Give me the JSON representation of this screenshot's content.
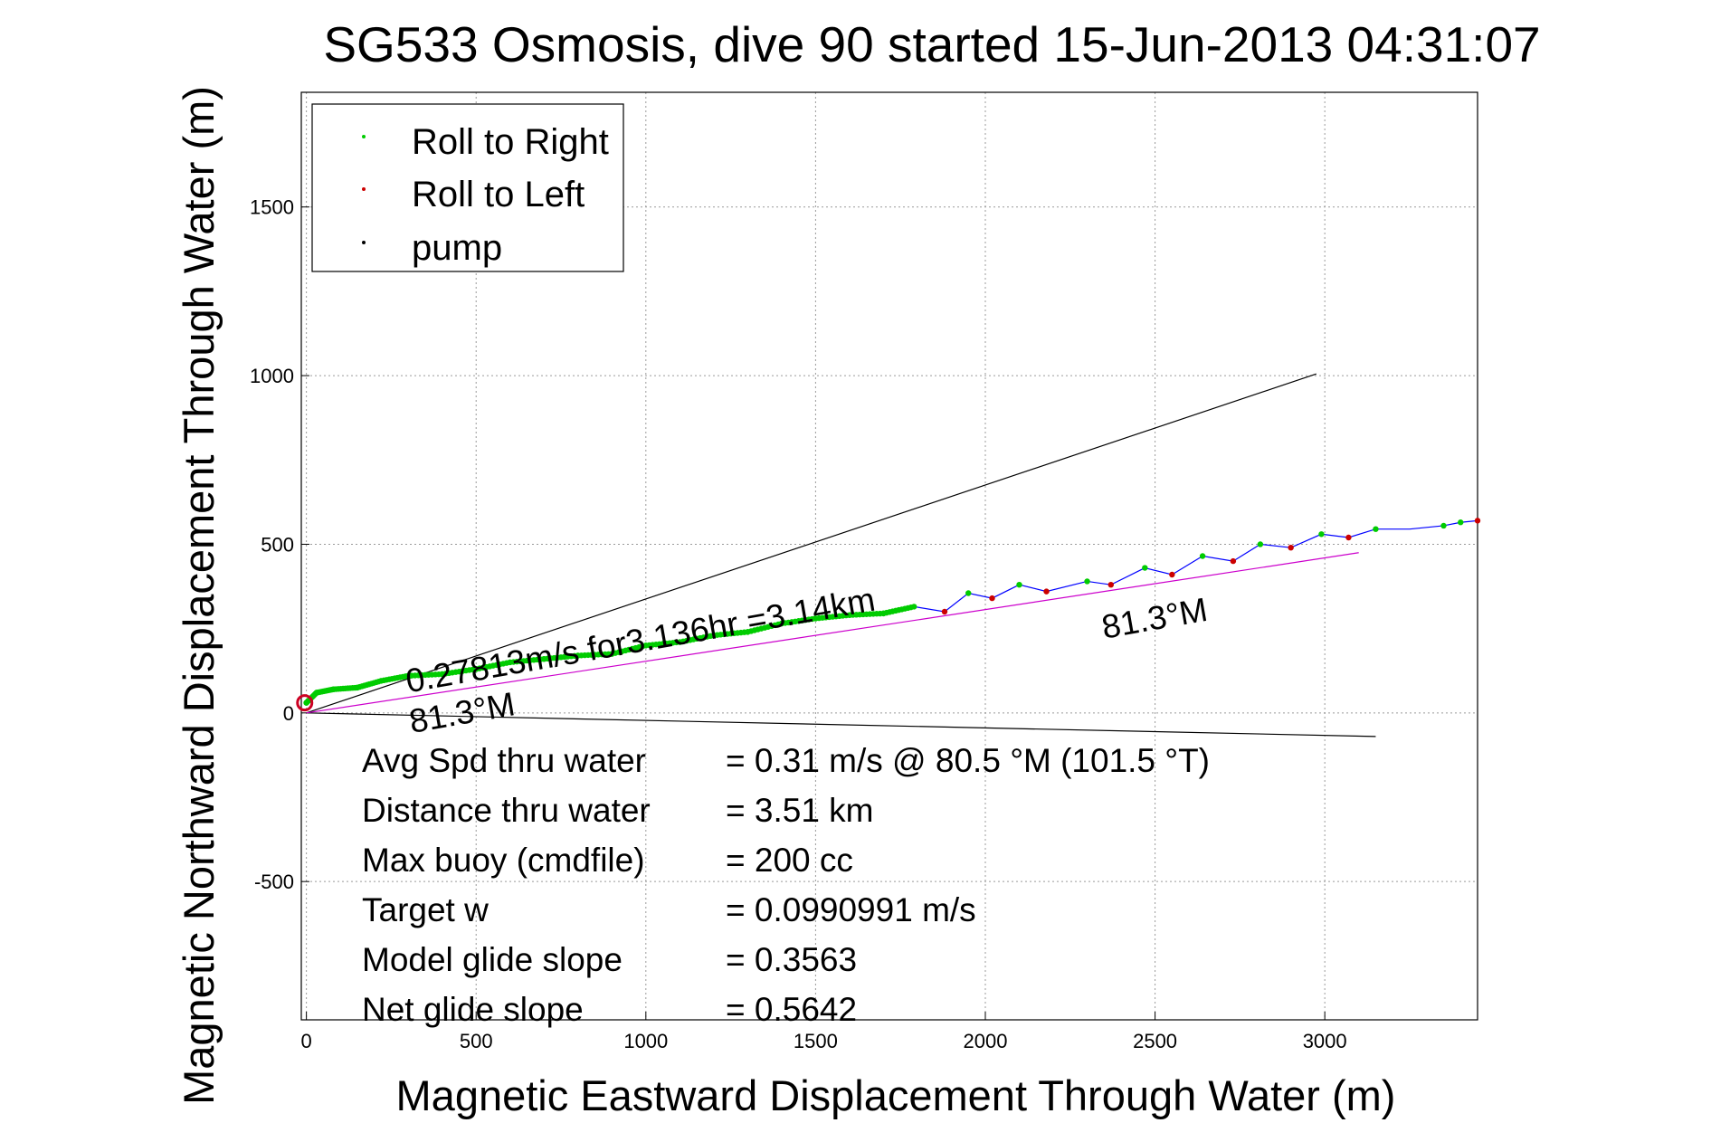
{
  "chart_data": {
    "type": "line",
    "title": "SG533 Osmosis, dive 90 started 15-Jun-2013 04:31:07",
    "xlabel": "Magnetic Eastward Displacement Through Water (m)",
    "ylabel": "Magnetic Northward Displacement Through Water (m)",
    "xlim": [
      -15,
      3450
    ],
    "ylim": [
      -910,
      1840
    ],
    "x_ticks": [
      0,
      500,
      1000,
      1500,
      2000,
      2500,
      3000
    ],
    "y_ticks": [
      -500,
      0,
      500,
      1000,
      1500
    ],
    "grid": true,
    "legend_position": "top-left",
    "legend": [
      {
        "label": "Roll to Right",
        "color": "#00cc00"
      },
      {
        "label": "Roll to Left",
        "color": "#cc0000"
      },
      {
        "label": "pump",
        "color": "#000000"
      }
    ],
    "track": {
      "color": "#0000ff",
      "x": [
        0,
        30,
        80,
        150,
        220,
        300,
        400,
        500,
        600,
        700,
        800,
        900,
        1000,
        1100,
        1200,
        1300,
        1400,
        1500,
        1600,
        1700,
        1790,
        1880,
        1950,
        2020,
        2100,
        2180,
        2300,
        2370,
        2470,
        2550,
        2640,
        2730,
        2810,
        2900,
        2990,
        3070,
        3150,
        3250,
        3350,
        3400,
        3450
      ],
      "y": [
        30,
        60,
        70,
        75,
        95,
        110,
        115,
        130,
        150,
        160,
        170,
        175,
        200,
        210,
        230,
        240,
        265,
        280,
        290,
        295,
        315,
        300,
        355,
        340,
        380,
        360,
        390,
        380,
        430,
        410,
        465,
        450,
        500,
        490,
        530,
        520,
        545,
        545,
        555,
        565,
        570
      ]
    },
    "roll_right_points": {
      "x": [
        0,
        30,
        80,
        150,
        220,
        300,
        400,
        500,
        600,
        700,
        800,
        900,
        1000,
        1100,
        1200,
        1300,
        1400,
        1500,
        1600,
        1700,
        1790,
        1950,
        2100,
        2300,
        2470,
        2640,
        2810,
        2990,
        3150,
        3350,
        3400
      ],
      "y": [
        30,
        60,
        70,
        75,
        95,
        110,
        115,
        130,
        150,
        160,
        170,
        175,
        200,
        210,
        230,
        240,
        265,
        280,
        290,
        295,
        315,
        355,
        380,
        390,
        430,
        465,
        500,
        530,
        545,
        555,
        565
      ]
    },
    "roll_left_points": {
      "x": [
        1880,
        2020,
        2180,
        2370,
        2550,
        2730,
        2900,
        3070,
        3450
      ],
      "y": [
        300,
        340,
        360,
        380,
        410,
        450,
        490,
        520,
        570
      ]
    },
    "start_circle": {
      "x": -5,
      "y": 30
    },
    "reference_lines": [
      {
        "name": "upper-bound",
        "color": "#000000",
        "x": [
          0,
          2975
        ],
        "y": [
          0,
          1005
        ]
      },
      {
        "name": "lower-bound",
        "color": "#000000",
        "x": [
          0,
          3150
        ],
        "y": [
          0,
          -70
        ]
      },
      {
        "name": "heading-line",
        "color": "#cc00cc",
        "x": [
          0,
          3100
        ],
        "y": [
          0,
          475
        ]
      }
    ],
    "annotations": [
      {
        "text": "0.27813m/s for3.136hr =3.14km",
        "x": 300,
        "y": 60,
        "angle": -10
      },
      {
        "text": "81.3°M",
        "x": 310,
        "y": -60,
        "angle": -10
      },
      {
        "text": "81.3°M",
        "x": 2350,
        "y": 220,
        "angle": -10
      }
    ],
    "stats": [
      {
        "label": "Avg Spd thru water",
        "value": "=  0.31 m/s @  80.5 °M (101.5 °T)"
      },
      {
        "label": "Distance thru water",
        "value": "=  3.51 km"
      },
      {
        "label": "Max buoy (cmdfile)",
        "value": "= 200 cc"
      },
      {
        "label": "Target w",
        "value": "= 0.0990991 m/s"
      },
      {
        "label": "Model glide slope",
        "value": "= 0.3563"
      },
      {
        "label": "Net glide slope",
        "value": "= 0.5642"
      }
    ]
  }
}
